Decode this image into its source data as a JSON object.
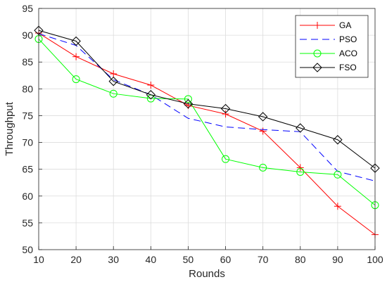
{
  "chart_data": {
    "type": "line",
    "title": "",
    "xlabel": "Rounds",
    "ylabel": "Throughput",
    "x": [
      10,
      20,
      30,
      40,
      50,
      60,
      70,
      80,
      90,
      100
    ],
    "xlim": [
      10,
      100
    ],
    "ylim": [
      50,
      95
    ],
    "xticks": [
      "10",
      "20",
      "30",
      "40",
      "50",
      "60",
      "70",
      "80",
      "90",
      "100"
    ],
    "yticks": [
      "50",
      "55",
      "60",
      "65",
      "70",
      "75",
      "80",
      "85",
      "90",
      "95"
    ],
    "grid": true,
    "legend_position": "top-right",
    "series": [
      {
        "name": "GA",
        "color": "#ff0000",
        "dash": "solid",
        "marker": "plus",
        "values": [
          90.4,
          86.0,
          82.8,
          80.7,
          76.9,
          75.3,
          72.1,
          65.3,
          58.1,
          52.8
        ]
      },
      {
        "name": "PSO",
        "color": "#0000ff",
        "dash": "dashed",
        "marker": "none",
        "values": [
          90.3,
          88.1,
          81.7,
          78.9,
          74.5,
          72.9,
          72.4,
          72.0,
          64.6,
          62.8
        ]
      },
      {
        "name": "ACO",
        "color": "#00ff00",
        "dash": "solid",
        "marker": "circle",
        "values": [
          89.3,
          81.8,
          79.1,
          78.2,
          78.1,
          66.9,
          65.3,
          64.5,
          64.0,
          58.3
        ]
      },
      {
        "name": "FSO",
        "color": "#000000",
        "dash": "solid",
        "marker": "diamond",
        "values": [
          90.9,
          88.9,
          81.4,
          78.9,
          77.2,
          76.3,
          74.8,
          72.7,
          70.5,
          65.2
        ]
      }
    ]
  }
}
